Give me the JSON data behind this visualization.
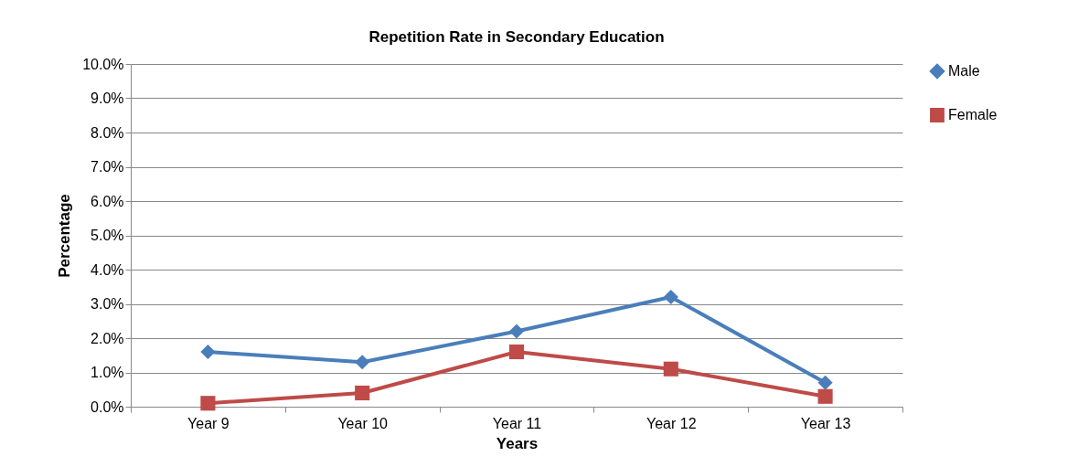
{
  "chart_data": {
    "type": "line",
    "title": "Repetition Rate in Secondary Education",
    "xlabel": "Years",
    "ylabel": "Percentage",
    "categories": [
      "Year 9",
      "Year 10",
      "Year 11",
      "Year 12",
      "Year 13"
    ],
    "series": [
      {
        "name": "Male",
        "color": "#4a7ebb",
        "marker": "diamond",
        "values": [
          1.6,
          1.3,
          2.2,
          3.2,
          0.7
        ]
      },
      {
        "name": "Female",
        "color": "#be4b48",
        "marker": "square",
        "values": [
          0.1,
          0.4,
          1.6,
          1.1,
          0.3
        ]
      }
    ],
    "ylim": [
      0,
      10
    ],
    "yticks": [
      {
        "value": 0,
        "label": "0.0%"
      },
      {
        "value": 1,
        "label": "1.0%"
      },
      {
        "value": 2,
        "label": "2.0%"
      },
      {
        "value": 3,
        "label": "3.0%"
      },
      {
        "value": 4,
        "label": "4.0%"
      },
      {
        "value": 5,
        "label": "5.0%"
      },
      {
        "value": 6,
        "label": "6.0%"
      },
      {
        "value": 7,
        "label": "7.0%"
      },
      {
        "value": 8,
        "label": "8.0%"
      },
      {
        "value": 9,
        "label": "9.0%"
      },
      {
        "value": 10,
        "label": "10.0%"
      }
    ],
    "grid": "y",
    "legend": "right",
    "line_style": "solid"
  }
}
